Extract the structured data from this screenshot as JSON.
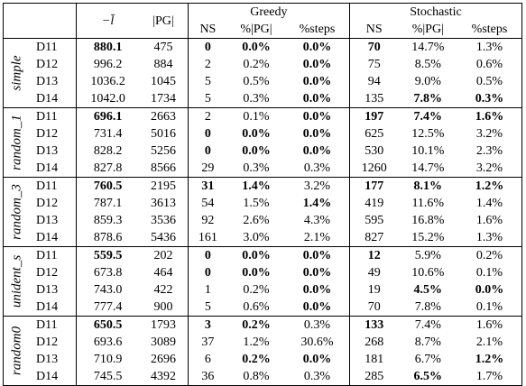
{
  "header": {
    "col_l": "−l̄",
    "col_pg": "|PG|",
    "greedy": "Greedy",
    "stochastic": "Stochastic",
    "ns": "NS",
    "pct_pg": "%|PG|",
    "pct_steps": "%steps"
  },
  "groups": [
    {
      "name": "simple",
      "rows": [
        {
          "d": "D11",
          "l": "880.1",
          "lb": true,
          "pg": "475",
          "gns": "0",
          "gnsb": true,
          "gpg": "0.0%",
          "gpgb": true,
          "gst": "0.0%",
          "gstb": true,
          "sns": "70",
          "snsb": true,
          "spg": "14.7%",
          "spgb": false,
          "sst": "1.3%",
          "sstb": false
        },
        {
          "d": "D12",
          "l": "996.2",
          "lb": false,
          "pg": "884",
          "gns": "2",
          "gnsb": false,
          "gpg": "0.2%",
          "gpgb": false,
          "gst": "0.0%",
          "gstb": true,
          "sns": "75",
          "snsb": false,
          "spg": "8.5%",
          "spgb": false,
          "sst": "0.6%",
          "sstb": false
        },
        {
          "d": "D13",
          "l": "1036.2",
          "lb": false,
          "pg": "1045",
          "gns": "5",
          "gnsb": false,
          "gpg": "0.5%",
          "gpgb": false,
          "gst": "0.0%",
          "gstb": true,
          "sns": "94",
          "snsb": false,
          "spg": "9.0%",
          "spgb": false,
          "sst": "0.5%",
          "sstb": false
        },
        {
          "d": "D14",
          "l": "1042.0",
          "lb": false,
          "pg": "1734",
          "gns": "5",
          "gnsb": false,
          "gpg": "0.3%",
          "gpgb": false,
          "gst": "0.0%",
          "gstb": true,
          "sns": "135",
          "snsb": false,
          "spg": "7.8%",
          "spgb": true,
          "sst": "0.3%",
          "sstb": true
        }
      ]
    },
    {
      "name": "random_1",
      "rows": [
        {
          "d": "D11",
          "l": "696.1",
          "lb": true,
          "pg": "2663",
          "gns": "2",
          "gnsb": false,
          "gpg": "0.1%",
          "gpgb": false,
          "gst": "0.0%",
          "gstb": true,
          "sns": "197",
          "snsb": true,
          "spg": "7.4%",
          "spgb": true,
          "sst": "1.6%",
          "sstb": true
        },
        {
          "d": "D12",
          "l": "731.4",
          "lb": false,
          "pg": "5016",
          "gns": "0",
          "gnsb": true,
          "gpg": "0.0%",
          "gpgb": true,
          "gst": "0.0%",
          "gstb": true,
          "sns": "625",
          "snsb": false,
          "spg": "12.5%",
          "spgb": false,
          "sst": "3.2%",
          "sstb": false
        },
        {
          "d": "D13",
          "l": "828.2",
          "lb": false,
          "pg": "5256",
          "gns": "0",
          "gnsb": true,
          "gpg": "0.0%",
          "gpgb": true,
          "gst": "0.0%",
          "gstb": true,
          "sns": "530",
          "snsb": false,
          "spg": "10.1%",
          "spgb": false,
          "sst": "2.3%",
          "sstb": false
        },
        {
          "d": "D14",
          "l": "827.8",
          "lb": false,
          "pg": "8566",
          "gns": "29",
          "gnsb": false,
          "gpg": "0.3%",
          "gpgb": false,
          "gst": "0.3%",
          "gstb": false,
          "sns": "1260",
          "snsb": false,
          "spg": "14.7%",
          "spgb": false,
          "sst": "3.2%",
          "sstb": false
        }
      ]
    },
    {
      "name": "random_3",
      "rows": [
        {
          "d": "D11",
          "l": "760.5",
          "lb": true,
          "pg": "2195",
          "gns": "31",
          "gnsb": true,
          "gpg": "1.4%",
          "gpgb": true,
          "gst": "3.2%",
          "gstb": false,
          "sns": "177",
          "snsb": true,
          "spg": "8.1%",
          "spgb": true,
          "sst": "1.2%",
          "sstb": true
        },
        {
          "d": "D12",
          "l": "787.1",
          "lb": false,
          "pg": "3613",
          "gns": "54",
          "gnsb": false,
          "gpg": "1.5%",
          "gpgb": false,
          "gst": "1.4%",
          "gstb": true,
          "sns": "419",
          "snsb": false,
          "spg": "11.6%",
          "spgb": false,
          "sst": "1.4%",
          "sstb": false
        },
        {
          "d": "D13",
          "l": "859.3",
          "lb": false,
          "pg": "3536",
          "gns": "92",
          "gnsb": false,
          "gpg": "2.6%",
          "gpgb": false,
          "gst": "4.3%",
          "gstb": false,
          "sns": "595",
          "snsb": false,
          "spg": "16.8%",
          "spgb": false,
          "sst": "1.6%",
          "sstb": false
        },
        {
          "d": "D14",
          "l": "878.6",
          "lb": false,
          "pg": "5436",
          "gns": "161",
          "gnsb": false,
          "gpg": "3.0%",
          "gpgb": false,
          "gst": "2.1%",
          "gstb": false,
          "sns": "827",
          "snsb": false,
          "spg": "15.2%",
          "spgb": false,
          "sst": "1.3%",
          "sstb": false
        }
      ]
    },
    {
      "name": "unident_s",
      "rows": [
        {
          "d": "D11",
          "l": "559.5",
          "lb": true,
          "pg": "202",
          "gns": "0",
          "gnsb": true,
          "gpg": "0.0%",
          "gpgb": true,
          "gst": "0.0%",
          "gstb": true,
          "sns": "12",
          "snsb": true,
          "spg": "5.9%",
          "spgb": false,
          "sst": "0.2%",
          "sstb": false
        },
        {
          "d": "D12",
          "l": "673.8",
          "lb": false,
          "pg": "464",
          "gns": "0",
          "gnsb": true,
          "gpg": "0.0%",
          "gpgb": true,
          "gst": "0.0%",
          "gstb": true,
          "sns": "49",
          "snsb": false,
          "spg": "10.6%",
          "spgb": false,
          "sst": "0.1%",
          "sstb": false
        },
        {
          "d": "D13",
          "l": "743.0",
          "lb": false,
          "pg": "422",
          "gns": "1",
          "gnsb": false,
          "gpg": "0.2%",
          "gpgb": false,
          "gst": "0.0%",
          "gstb": true,
          "sns": "19",
          "snsb": false,
          "spg": "4.5%",
          "spgb": true,
          "sst": "0.0%",
          "sstb": true
        },
        {
          "d": "D14",
          "l": "777.4",
          "lb": false,
          "pg": "900",
          "gns": "5",
          "gnsb": false,
          "gpg": "0.6%",
          "gpgb": false,
          "gst": "0.0%",
          "gstb": true,
          "sns": "70",
          "snsb": false,
          "spg": "7.8%",
          "spgb": false,
          "sst": "0.1%",
          "sstb": false
        }
      ]
    },
    {
      "name": "random0",
      "rows": [
        {
          "d": "D11",
          "l": "650.5",
          "lb": true,
          "pg": "1793",
          "gns": "3",
          "gnsb": true,
          "gpg": "0.2%",
          "gpgb": true,
          "gst": "0.3%",
          "gstb": false,
          "sns": "133",
          "snsb": true,
          "spg": "7.4%",
          "spgb": false,
          "sst": "1.6%",
          "sstb": false
        },
        {
          "d": "D12",
          "l": "693.6",
          "lb": false,
          "pg": "3089",
          "gns": "37",
          "gnsb": false,
          "gpg": "1.2%",
          "gpgb": false,
          "gst": "30.6%",
          "gstb": false,
          "sns": "268",
          "snsb": false,
          "spg": "8.7%",
          "spgb": false,
          "sst": "2.1%",
          "sstb": false
        },
        {
          "d": "D13",
          "l": "710.9",
          "lb": false,
          "pg": "2696",
          "gns": "6",
          "gnsb": false,
          "gpg": "0.2%",
          "gpgb": true,
          "gst": "0.0%",
          "gstb": true,
          "sns": "181",
          "snsb": false,
          "spg": "6.7%",
          "spgb": false,
          "sst": "1.2%",
          "sstb": true
        },
        {
          "d": "D14",
          "l": "745.5",
          "lb": false,
          "pg": "4392",
          "gns": "36",
          "gnsb": false,
          "gpg": "0.8%",
          "gpgb": false,
          "gst": "0.3%",
          "gstb": false,
          "sns": "285",
          "snsb": false,
          "spg": "6.5%",
          "spgb": true,
          "sst": "1.7%",
          "sstb": false
        }
      ]
    }
  ]
}
